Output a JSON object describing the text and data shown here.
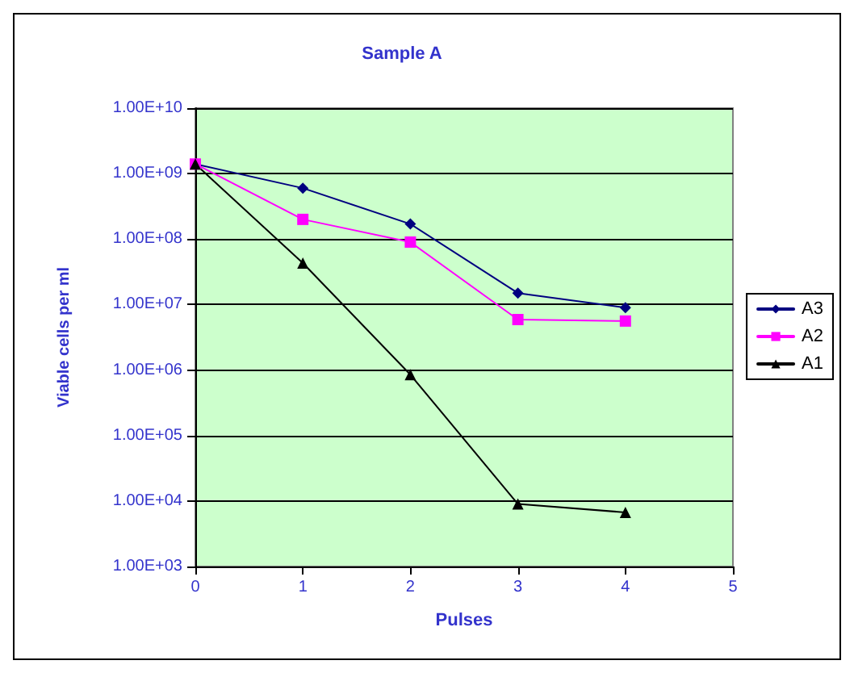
{
  "chart_data": {
    "type": "line",
    "title": "Sample A",
    "xlabel": "Pulses",
    "ylabel": "Viable cells per ml",
    "x": [
      0,
      1,
      2,
      3,
      4
    ],
    "series": [
      {
        "name": "A3",
        "color": "#000080",
        "marker": "diamond",
        "values": [
          1400000000,
          600000000,
          170000000,
          15000000,
          9000000
        ]
      },
      {
        "name": "A2",
        "color": "#ff00ff",
        "marker": "square",
        "values": [
          1400000000,
          200000000,
          90000000,
          5900000,
          5600000
        ]
      },
      {
        "name": "A1",
        "color": "#000000",
        "marker": "triangle",
        "values": [
          1400000000,
          43000000,
          850000,
          9000,
          6700
        ]
      }
    ],
    "log": "y",
    "xlim": [
      0,
      5
    ],
    "xticks": [
      0,
      1,
      2,
      3,
      4,
      5
    ],
    "ylim": [
      1000,
      10000000000
    ],
    "yticks": [
      {
        "value": 1000,
        "label": "1.00E+03"
      },
      {
        "value": 10000,
        "label": "1.00E+04"
      },
      {
        "value": 100000,
        "label": "1.00E+05"
      },
      {
        "value": 1000000,
        "label": "1.00E+06"
      },
      {
        "value": 10000000,
        "label": "1.00E+07"
      },
      {
        "value": 100000000,
        "label": "1.00E+08"
      },
      {
        "value": 1000000000,
        "label": "1.00E+09"
      },
      {
        "value": 10000000000,
        "label": "1.00E+10"
      }
    ],
    "grid": "y",
    "legend": "right",
    "line_style": "solid"
  }
}
